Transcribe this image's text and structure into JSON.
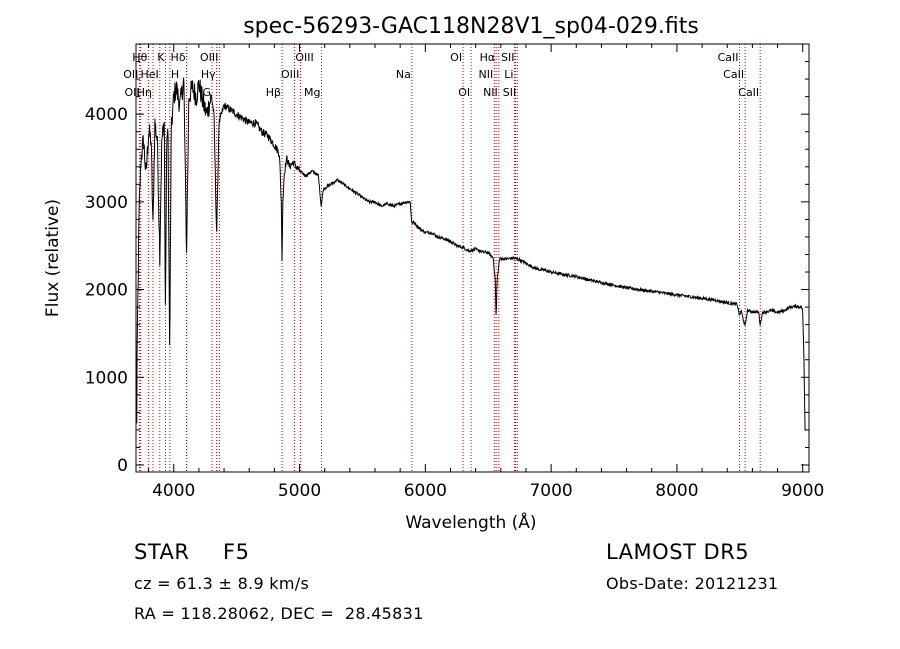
{
  "chart_data": {
    "type": "line",
    "title": "spec-56293-GAC118N28V1_sp04-029.fits",
    "xlabel": "Wavelength (Å)",
    "ylabel": "Flux (relative)",
    "xlim": [
      3700,
      9050
    ],
    "ylim": [
      -80,
      4800
    ],
    "xticks": [
      4000,
      5000,
      6000,
      7000,
      8000,
      9000
    ],
    "yticks": [
      0,
      1000,
      2000,
      3000,
      4000
    ],
    "grid": false,
    "spectrum_anchors": [
      [
        3700,
        1300
      ],
      [
        3705,
        200
      ],
      [
        3710,
        1400
      ],
      [
        3725,
        2900
      ],
      [
        3740,
        3500
      ],
      [
        3760,
        3700
      ],
      [
        3780,
        3300
      ],
      [
        3800,
        3800
      ],
      [
        3820,
        3700
      ],
      [
        3835,
        2700
      ],
      [
        3850,
        3900
      ],
      [
        3870,
        3700
      ],
      [
        3889,
        2400
      ],
      [
        3905,
        3700
      ],
      [
        3925,
        3900
      ],
      [
        3933,
        1600
      ],
      [
        3945,
        3800
      ],
      [
        3955,
        3700
      ],
      [
        3968,
        1200
      ],
      [
        3980,
        3800
      ],
      [
        4000,
        4200
      ],
      [
        4020,
        4300
      ],
      [
        4050,
        4100
      ],
      [
        4080,
        4400
      ],
      [
        4102,
        2400
      ],
      [
        4120,
        4200
      ],
      [
        4150,
        4300
      ],
      [
        4180,
        4200
      ],
      [
        4200,
        4350
      ],
      [
        4230,
        4150
      ],
      [
        4260,
        4000
      ],
      [
        4300,
        4200
      ],
      [
        4320,
        4000
      ],
      [
        4341,
        2600
      ],
      [
        4360,
        3900
      ],
      [
        4400,
        4100
      ],
      [
        4450,
        4050
      ],
      [
        4500,
        4000
      ],
      [
        4550,
        3950
      ],
      [
        4600,
        3900
      ],
      [
        4650,
        3900
      ],
      [
        4700,
        3800
      ],
      [
        4750,
        3750
      ],
      [
        4800,
        3650
      ],
      [
        4840,
        3550
      ],
      [
        4855,
        3000
      ],
      [
        4861,
        2300
      ],
      [
        4867,
        3000
      ],
      [
        4880,
        3350
      ],
      [
        4900,
        3500
      ],
      [
        4920,
        3400
      ],
      [
        4950,
        3450
      ],
      [
        5000,
        3350
      ],
      [
        5050,
        3300
      ],
      [
        5100,
        3350
      ],
      [
        5150,
        3300
      ],
      [
        5172,
        2950
      ],
      [
        5190,
        3150
      ],
      [
        5250,
        3200
      ],
      [
        5300,
        3250
      ],
      [
        5350,
        3200
      ],
      [
        5400,
        3150
      ],
      [
        5450,
        3100
      ],
      [
        5500,
        3050
      ],
      [
        5550,
        3000
      ],
      [
        5600,
        3000
      ],
      [
        5650,
        2950
      ],
      [
        5700,
        2980
      ],
      [
        5750,
        2950
      ],
      [
        5800,
        2980
      ],
      [
        5850,
        3000
      ],
      [
        5880,
        3000
      ],
      [
        5893,
        2750
      ],
      [
        5910,
        2770
      ],
      [
        5950,
        2700
      ],
      [
        6000,
        2650
      ],
      [
        6050,
        2650
      ],
      [
        6100,
        2600
      ],
      [
        6150,
        2580
      ],
      [
        6200,
        2550
      ],
      [
        6250,
        2500
      ],
      [
        6300,
        2480
      ],
      [
        6350,
        2440
      ],
      [
        6400,
        2460
      ],
      [
        6450,
        2430
      ],
      [
        6500,
        2420
      ],
      [
        6540,
        2360
      ],
      [
        6556,
        2100
      ],
      [
        6563,
        1650
      ],
      [
        6570,
        2100
      ],
      [
        6590,
        2350
      ],
      [
        6650,
        2350
      ],
      [
        6700,
        2360
      ],
      [
        6750,
        2340
      ],
      [
        6800,
        2300
      ],
      [
        6850,
        2260
      ],
      [
        6900,
        2230
      ],
      [
        6950,
        2220
      ],
      [
        7000,
        2200
      ],
      [
        7100,
        2170
      ],
      [
        7200,
        2150
      ],
      [
        7300,
        2110
      ],
      [
        7400,
        2080
      ],
      [
        7500,
        2050
      ],
      [
        7600,
        2020
      ],
      [
        7700,
        2000
      ],
      [
        7800,
        1980
      ],
      [
        7900,
        1960
      ],
      [
        8000,
        1940
      ],
      [
        8100,
        1920
      ],
      [
        8200,
        1900
      ],
      [
        8300,
        1880
      ],
      [
        8400,
        1850
      ],
      [
        8480,
        1830
      ],
      [
        8498,
        1700
      ],
      [
        8510,
        1760
      ],
      [
        8542,
        1580
      ],
      [
        8560,
        1760
      ],
      [
        8600,
        1750
      ],
      [
        8650,
        1740
      ],
      [
        8662,
        1600
      ],
      [
        8680,
        1740
      ],
      [
        8750,
        1760
      ],
      [
        8800,
        1740
      ],
      [
        8850,
        1760
      ],
      [
        8900,
        1800
      ],
      [
        8950,
        1810
      ],
      [
        8990,
        1800
      ],
      [
        9000,
        1750
      ],
      [
        9010,
        1200
      ],
      [
        9020,
        300
      ]
    ],
    "line_labels": [
      {
        "name": "Hθ",
        "x": 3798,
        "row": 0,
        "side": "left"
      },
      {
        "name": "K",
        "x": 3934,
        "row": 0,
        "side": "left"
      },
      {
        "name": "Hδ",
        "x": 4102,
        "row": 0,
        "side": "left"
      },
      {
        "name": "OII",
        "x": 3727,
        "row": 1,
        "side": "left"
      },
      {
        "name": "HeI",
        "x": 3889,
        "row": 1,
        "side": "left"
      },
      {
        "name": "H",
        "x": 3969,
        "row": 1,
        "side": "right"
      },
      {
        "name": "OII",
        "x": 3737,
        "row": 2,
        "side": "left"
      },
      {
        "name": "Hη",
        "x": 3835,
        "row": 2,
        "side": "left"
      },
      {
        "name": "OIII",
        "x": 4363,
        "row": 0,
        "side": "left"
      },
      {
        "name": "Hγ",
        "x": 4341,
        "row": 1,
        "side": "left"
      },
      {
        "name": "G",
        "x": 4304,
        "row": 2,
        "side": "left"
      },
      {
        "name": "OIII",
        "x": 4959,
        "row": 0,
        "side": "right"
      },
      {
        "name": "OIII",
        "x": 5007,
        "row": 1,
        "side": "left"
      },
      {
        "name": "Hβ",
        "x": 4861,
        "row": 2,
        "side": "left"
      },
      {
        "name": "Mg",
        "x": 5175,
        "row": 2,
        "side": "left"
      },
      {
        "name": "Na",
        "x": 5893,
        "row": 1,
        "side": "left"
      },
      {
        "name": "OI",
        "x": 6300,
        "row": 0,
        "side": "left"
      },
      {
        "name": "OI",
        "x": 6364,
        "row": 2,
        "side": "left"
      },
      {
        "name": "Hα",
        "x": 6563,
        "row": 0,
        "side": "left"
      },
      {
        "name": "SII",
        "x": 6717,
        "row": 0,
        "side": "left"
      },
      {
        "name": "NII",
        "x": 6548,
        "row": 1,
        "side": "left"
      },
      {
        "name": "Li",
        "x": 6708,
        "row": 1,
        "side": "left"
      },
      {
        "name": "NII",
        "x": 6584,
        "row": 2,
        "side": "left"
      },
      {
        "name": "SII",
        "x": 6731,
        "row": 2,
        "side": "left"
      },
      {
        "name": "CaII",
        "x": 8498,
        "row": 0,
        "side": "left"
      },
      {
        "name": "CaII",
        "x": 8542,
        "row": 1,
        "side": "left"
      },
      {
        "name": "CaII",
        "x": 8662,
        "row": 2,
        "side": "left"
      }
    ]
  },
  "info": {
    "class_label": "STAR",
    "subclass": "F5",
    "survey": "LAMOST DR5",
    "cz": "cz = 61.3 ± 8.9 km/s",
    "obs_date": "Obs-Date: 20121231",
    "coords": "RA = 118.28062, DEC =  28.45831"
  },
  "colors": {
    "spectrum": "#000000",
    "line_markers": "#cc0000",
    "axes": "#000000"
  }
}
